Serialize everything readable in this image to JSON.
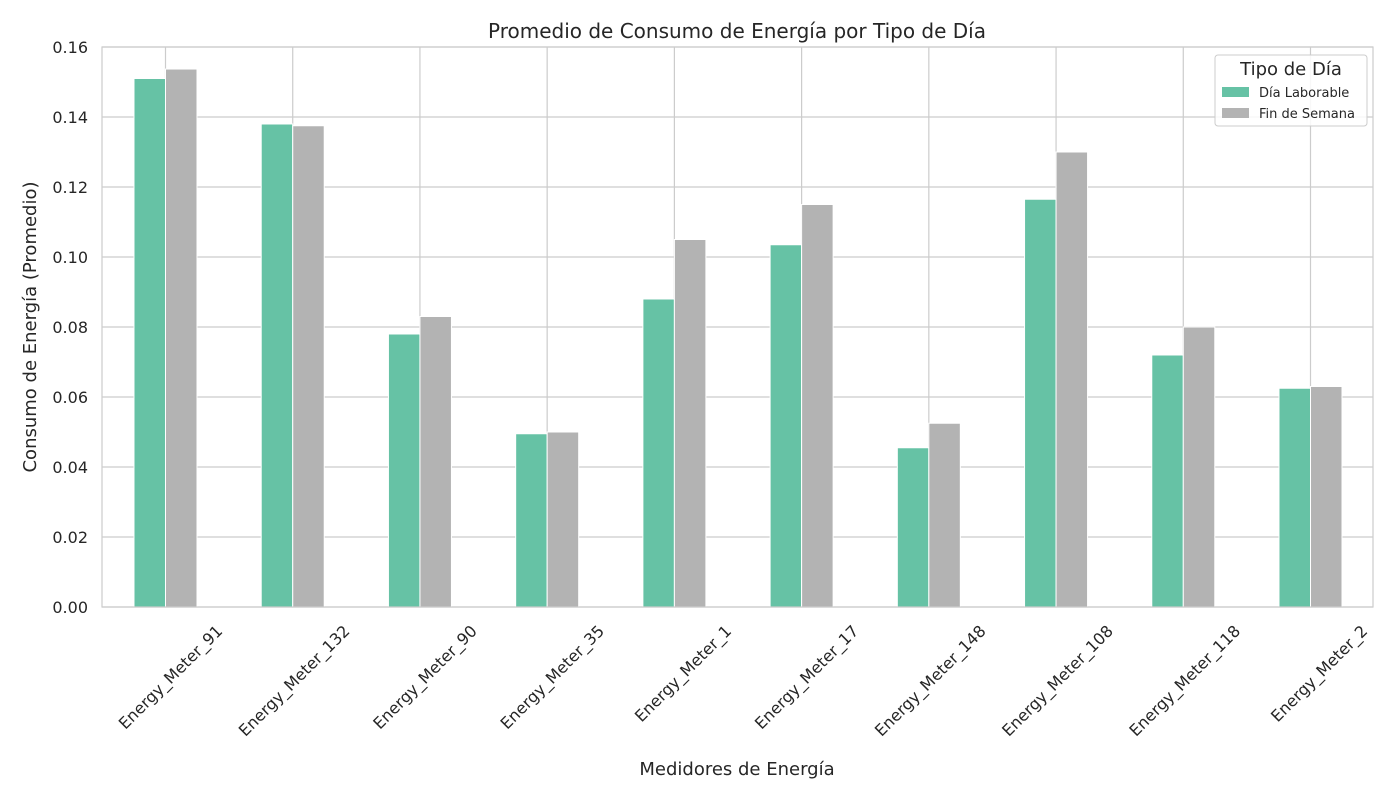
{
  "chart_data": {
    "type": "bar",
    "title": "Promedio de Consumo de Energía por Tipo de Día",
    "xlabel": "Medidores de Energía",
    "ylabel": "Consumo de Energía (Promedio)",
    "ylim": [
      0,
      0.16
    ],
    "yticks": [
      "0.00",
      "0.02",
      "0.04",
      "0.06",
      "0.08",
      "0.10",
      "0.12",
      "0.14",
      "0.16"
    ],
    "categories": [
      "Energy_Meter_91",
      "Energy_Meter_132",
      "Energy_Meter_90",
      "Energy_Meter_35",
      "Energy_Meter_1",
      "Energy_Meter_17",
      "Energy_Meter_148",
      "Energy_Meter_108",
      "Energy_Meter_118",
      "Energy_Meter_2"
    ],
    "series": [
      {
        "name": "Día Laborable",
        "color": "#66c2a5",
        "values": [
          0.151,
          0.138,
          0.078,
          0.0495,
          0.088,
          0.1035,
          0.0455,
          0.1165,
          0.072,
          0.0625
        ]
      },
      {
        "name": "Fin de Semana",
        "color": "#b3b3b3",
        "values": [
          0.1537,
          0.1375,
          0.083,
          0.05,
          0.105,
          0.115,
          0.0525,
          0.13,
          0.08,
          0.063
        ]
      }
    ],
    "legend": {
      "title": "Tipo de Día",
      "placement": "top-right"
    },
    "grid": true
  }
}
